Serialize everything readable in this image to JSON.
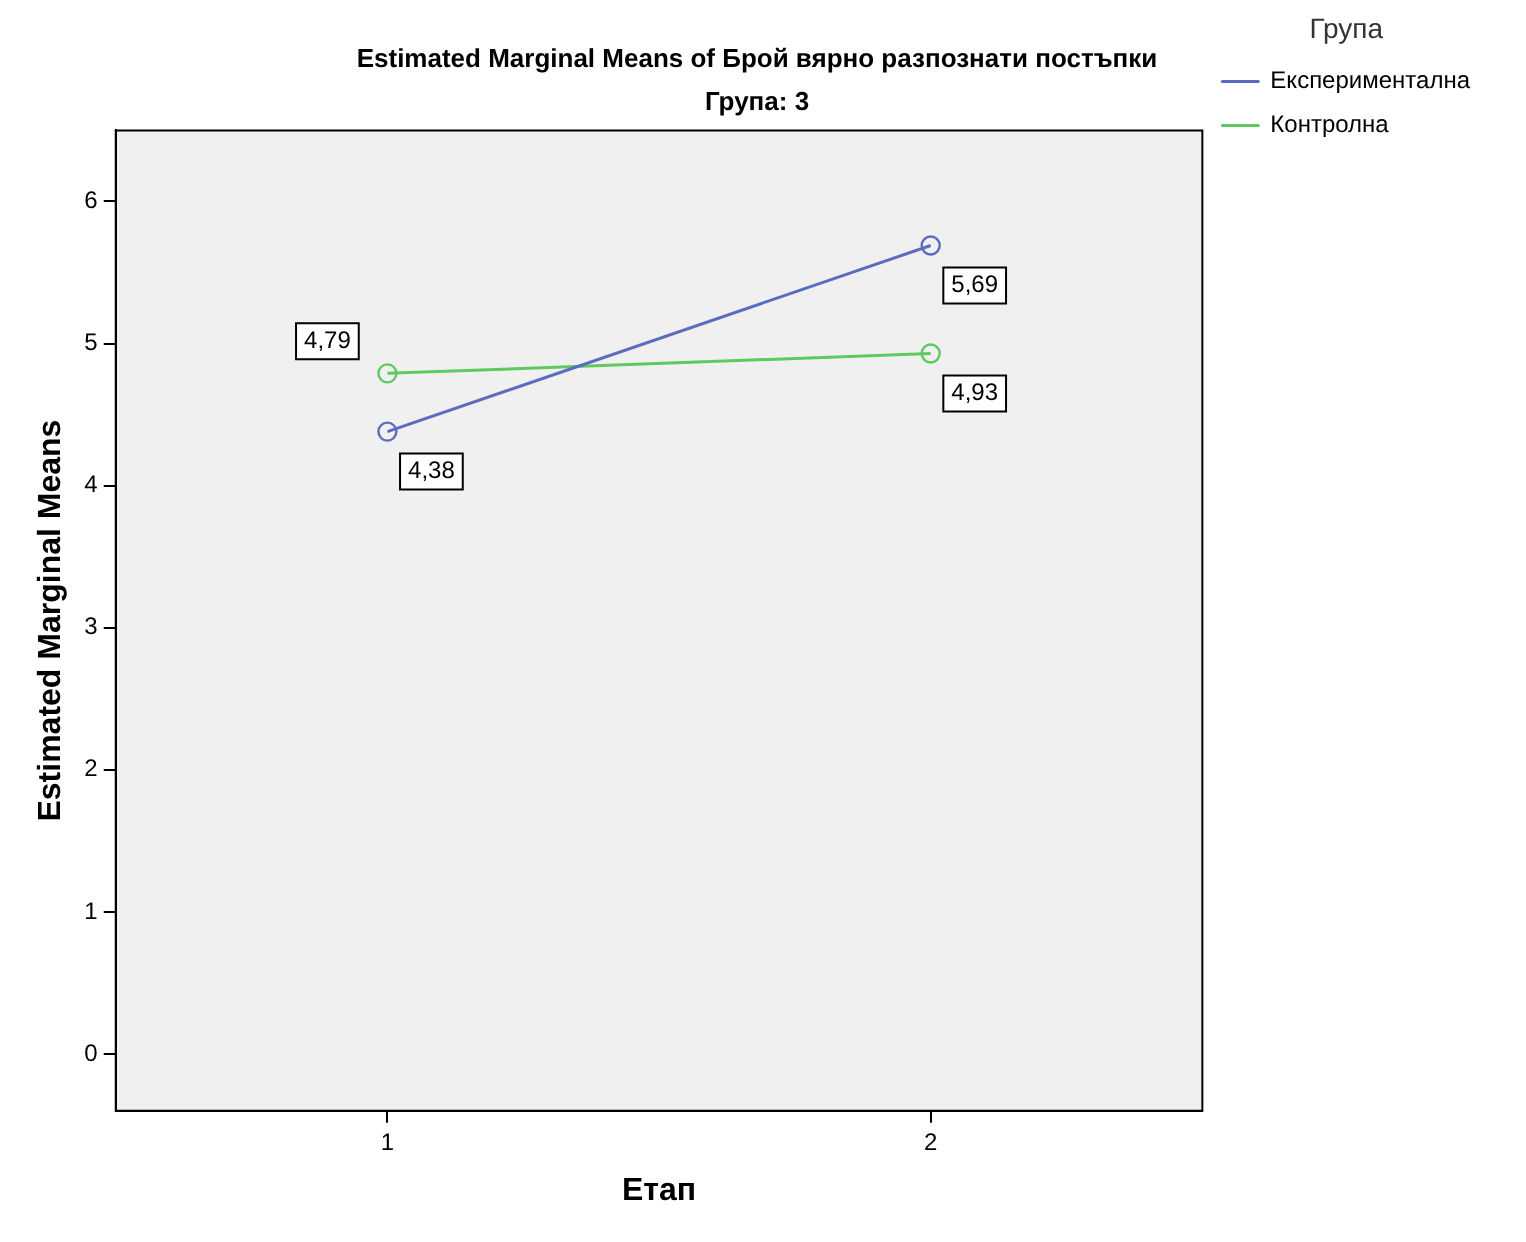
{
  "chart_data": {
    "type": "line",
    "title": "Estimated Marginal Means of Брой вярно разпознати постъпки",
    "subtitle": "Група: 3",
    "xlabel": "Етап",
    "ylabel": "Estimated Marginal Means",
    "legend_title": "Група",
    "categories": [
      "1",
      "2"
    ],
    "series": [
      {
        "name": "Експериментална",
        "color": "#5b6bbf",
        "values": [
          4.38,
          5.69
        ],
        "value_labels": [
          "4,38",
          "5,69"
        ]
      },
      {
        "name": "Контролна",
        "color": "#5ec95e",
        "values": [
          4.79,
          4.93
        ],
        "value_labels": [
          "4,79",
          "4,93"
        ]
      }
    ],
    "ylim": [
      -0.4,
      6.5
    ],
    "yticks": [
      0,
      1,
      2,
      3,
      4,
      5,
      6
    ],
    "grid": false,
    "legend": "right",
    "marker": "circle",
    "line_style": "solid"
  }
}
